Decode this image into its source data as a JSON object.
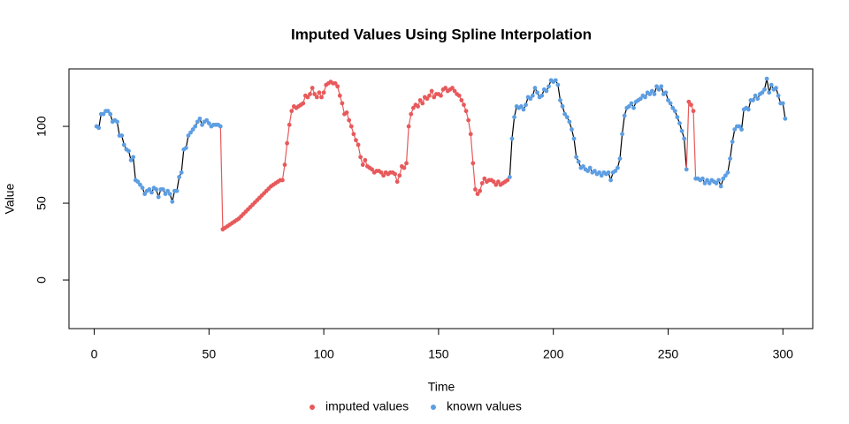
{
  "chart_data": {
    "type": "line",
    "title": "Imputed Values Using Spline Interpolation",
    "x_label": "Time",
    "y_label": "Value",
    "xlim": [
      -11,
      313
    ],
    "ylim": [
      -31.6,
      137.4
    ],
    "xticks": [
      0,
      50,
      100,
      150,
      200,
      250,
      300
    ],
    "yticks": [
      0,
      50,
      100
    ],
    "line_color": "#000000",
    "x": [
      1,
      2,
      3,
      4,
      5,
      6,
      7,
      8,
      9,
      10,
      11,
      12,
      13,
      14,
      15,
      16,
      17,
      18,
      19,
      20,
      21,
      22,
      23,
      24,
      25,
      26,
      27,
      28,
      29,
      30,
      31,
      32,
      33,
      34,
      35,
      36,
      37,
      38,
      39,
      40,
      41,
      42,
      43,
      44,
      45,
      46,
      47,
      48,
      49,
      50,
      51,
      52,
      53,
      54,
      55,
      56,
      57,
      58,
      59,
      60,
      61,
      62,
      63,
      64,
      65,
      66,
      67,
      68,
      69,
      70,
      71,
      72,
      73,
      74,
      75,
      76,
      77,
      78,
      79,
      80,
      81,
      82,
      83,
      84,
      85,
      86,
      87,
      88,
      89,
      90,
      91,
      92,
      93,
      94,
      95,
      96,
      97,
      98,
      99,
      100,
      101,
      102,
      103,
      104,
      105,
      106,
      107,
      108,
      109,
      110,
      111,
      112,
      113,
      114,
      115,
      116,
      117,
      118,
      119,
      120,
      121,
      122,
      123,
      124,
      125,
      126,
      127,
      128,
      129,
      130,
      131,
      132,
      133,
      134,
      135,
      136,
      137,
      138,
      139,
      140,
      141,
      142,
      143,
      144,
      145,
      146,
      147,
      148,
      149,
      150,
      151,
      152,
      153,
      154,
      155,
      156,
      157,
      158,
      159,
      160,
      161,
      162,
      163,
      164,
      165,
      166,
      167,
      168,
      169,
      170,
      171,
      172,
      173,
      174,
      175,
      176,
      177,
      178,
      179,
      180,
      181,
      182,
      183,
      184,
      185,
      186,
      187,
      188,
      189,
      190,
      191,
      192,
      193,
      194,
      195,
      196,
      197,
      198,
      199,
      200,
      201,
      202,
      203,
      204,
      205,
      206,
      207,
      208,
      209,
      210,
      211,
      212,
      213,
      214,
      215,
      216,
      217,
      218,
      219,
      220,
      221,
      222,
      223,
      224,
      225,
      226,
      227,
      228,
      229,
      230,
      231,
      232,
      233,
      234,
      235,
      236,
      237,
      238,
      239,
      240,
      241,
      242,
      243,
      244,
      245,
      246,
      247,
      248,
      249,
      250,
      251,
      252,
      253,
      254,
      255,
      256,
      257,
      258,
      259,
      260,
      261,
      262,
      263,
      264,
      265,
      266,
      267,
      268,
      269,
      270,
      271,
      272,
      273,
      274,
      275,
      276,
      277,
      278,
      279,
      280,
      281,
      282,
      283,
      284,
      285,
      286,
      287,
      288,
      289,
      290,
      291,
      292,
      293,
      294,
      295,
      296,
      297,
      298,
      299,
      300,
      301
    ],
    "series": [
      {
        "name": "imputed values",
        "color": "#e8595b",
        "values": [
          null,
          null,
          null,
          null,
          null,
          null,
          null,
          null,
          null,
          null,
          null,
          null,
          null,
          null,
          null,
          null,
          null,
          null,
          null,
          null,
          null,
          null,
          null,
          null,
          null,
          null,
          null,
          null,
          null,
          null,
          null,
          null,
          null,
          null,
          null,
          null,
          null,
          null,
          null,
          null,
          null,
          null,
          null,
          null,
          null,
          null,
          null,
          null,
          null,
          null,
          null,
          null,
          null,
          null,
          null,
          33,
          34,
          35,
          36,
          37,
          38,
          39,
          40,
          41.5,
          43,
          44.5,
          46,
          47.5,
          49,
          50.5,
          52,
          53.5,
          55,
          56.5,
          58,
          59.5,
          61,
          62,
          63,
          64,
          65,
          65,
          75,
          89,
          101,
          110,
          113,
          112,
          113,
          114,
          115,
          120,
          119,
          121,
          125,
          121,
          119,
          122,
          119,
          122,
          127,
          128,
          129,
          128,
          128,
          126,
          120,
          115,
          108,
          109,
          104,
          100,
          95,
          91,
          88,
          80,
          75,
          78,
          74,
          73,
          72,
          70,
          71,
          71,
          70,
          68,
          70,
          69,
          70,
          70,
          69,
          64,
          68,
          74,
          73,
          76,
          100,
          108,
          112,
          114,
          113,
          117,
          115,
          119,
          118,
          120,
          123,
          119,
          121,
          121,
          120,
          124,
          125,
          123,
          124,
          125,
          123,
          121,
          120,
          117,
          114,
          110,
          104,
          95,
          76,
          59,
          56,
          58,
          63,
          66,
          64,
          65,
          65,
          64,
          62,
          64,
          62,
          63,
          64,
          65,
          null,
          null,
          null,
          null,
          null,
          null,
          null,
          null,
          null,
          null,
          null,
          null,
          null,
          null,
          null,
          null,
          null,
          null,
          null,
          null,
          null,
          null,
          null,
          null,
          null,
          null,
          null,
          null,
          null,
          null,
          null,
          null,
          null,
          null,
          null,
          null,
          null,
          null,
          null,
          null,
          null,
          null,
          null,
          null,
          null,
          null,
          null,
          null,
          null,
          null,
          null,
          null,
          null,
          null,
          null,
          null,
          null,
          null,
          null,
          null,
          null,
          null,
          null,
          null,
          null,
          null,
          null,
          null,
          null,
          null,
          null,
          null,
          null,
          null,
          null,
          null,
          null,
          null,
          116,
          114,
          110,
          null,
          null,
          null,
          null,
          null,
          null,
          null,
          null,
          null,
          null,
          null,
          null,
          null,
          null,
          null,
          null,
          null,
          null,
          null,
          null,
          null,
          null,
          null,
          null,
          null,
          null,
          null,
          null,
          null,
          null,
          null,
          null,
          null,
          null,
          null,
          null,
          null,
          null,
          null,
          null
        ]
      },
      {
        "name": "known values",
        "color": "#5d9ee3",
        "values": [
          100,
          99,
          108,
          108,
          110,
          110,
          108,
          103,
          104,
          103,
          94,
          94,
          88,
          85,
          84,
          78,
          80,
          65,
          64,
          62,
          60,
          56,
          58,
          59,
          57,
          60,
          59,
          54,
          59,
          59,
          56,
          58,
          56,
          51,
          58,
          58,
          67,
          70,
          85,
          86,
          94,
          96,
          98,
          100,
          103,
          105,
          101,
          103,
          104,
          102,
          100,
          101,
          101,
          101,
          100,
          null,
          null,
          null,
          null,
          null,
          null,
          null,
          null,
          null,
          null,
          null,
          null,
          null,
          null,
          null,
          null,
          null,
          null,
          null,
          null,
          null,
          null,
          null,
          null,
          null,
          null,
          null,
          null,
          null,
          null,
          null,
          null,
          null,
          null,
          null,
          null,
          null,
          null,
          null,
          null,
          null,
          null,
          null,
          null,
          null,
          null,
          null,
          null,
          null,
          null,
          null,
          null,
          null,
          null,
          null,
          null,
          null,
          null,
          null,
          null,
          null,
          null,
          null,
          null,
          null,
          null,
          null,
          null,
          null,
          null,
          null,
          null,
          null,
          null,
          null,
          null,
          null,
          null,
          null,
          null,
          null,
          null,
          null,
          null,
          null,
          null,
          null,
          null,
          null,
          null,
          null,
          null,
          null,
          null,
          null,
          null,
          null,
          null,
          null,
          null,
          null,
          null,
          null,
          null,
          null,
          null,
          null,
          null,
          null,
          null,
          null,
          null,
          null,
          null,
          null,
          null,
          null,
          null,
          null,
          null,
          null,
          null,
          null,
          null,
          null,
          67,
          92,
          106,
          113,
          112,
          113,
          111,
          114,
          119,
          118,
          120,
          125,
          122,
          119,
          120,
          124,
          123,
          126,
          130,
          129,
          130,
          127,
          117,
          113,
          108,
          106,
          103,
          98,
          92,
          80,
          77,
          73,
          74,
          72,
          71,
          73,
          70,
          71,
          69,
          70,
          68,
          70,
          69,
          70,
          65,
          70,
          71,
          73,
          79,
          95,
          107,
          112,
          113,
          115,
          112,
          116,
          117,
          118,
          120,
          119,
          122,
          121,
          123,
          121,
          126,
          124,
          126,
          121,
          122,
          117,
          115,
          112,
          110,
          106,
          102,
          97,
          92,
          72,
          null,
          null,
          null,
          66,
          66,
          65,
          66,
          63,
          65,
          63,
          65,
          64,
          63,
          65,
          61,
          66,
          68,
          70,
          79,
          90,
          98,
          100,
          100,
          98,
          111,
          112,
          111,
          117,
          117,
          120,
          118,
          121,
          122,
          124,
          131,
          122,
          127,
          124,
          125,
          120,
          115,
          115,
          105
        ]
      }
    ]
  }
}
